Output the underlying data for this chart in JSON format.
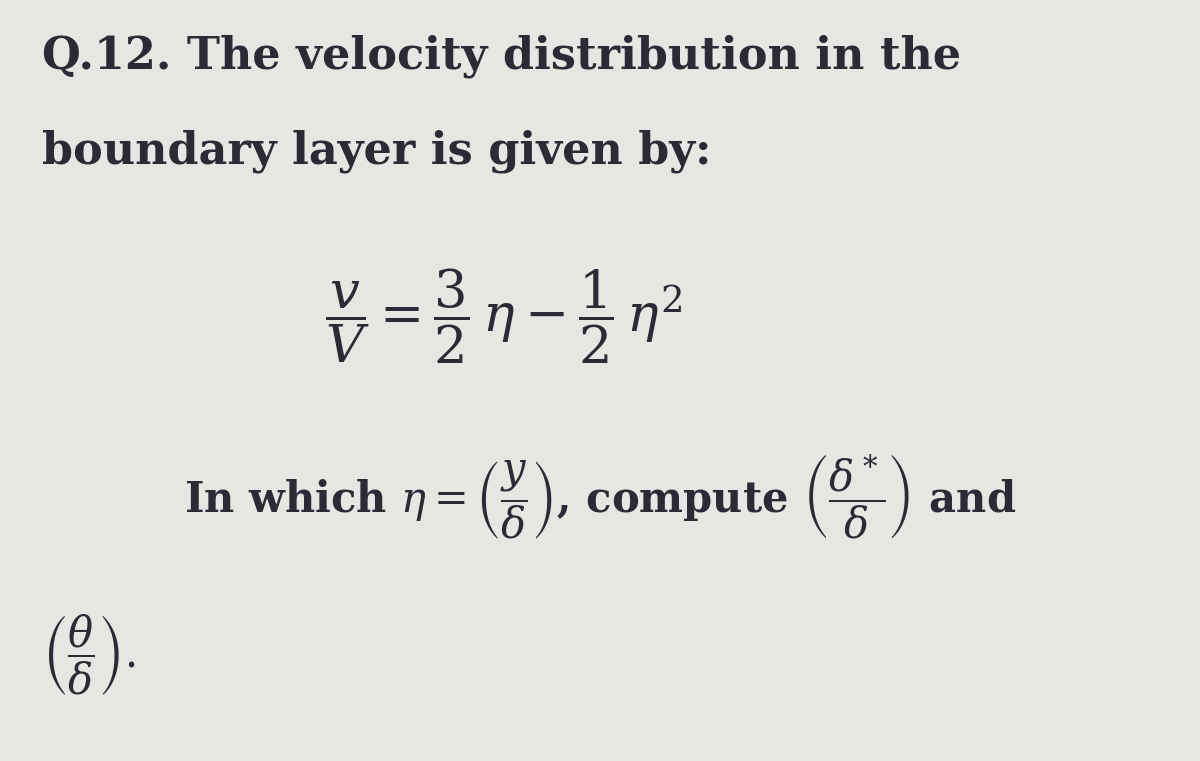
{
  "background_color": "#e8e6e2",
  "text_color": "#2d2a35",
  "fig_width": 12.0,
  "fig_height": 7.61,
  "dpi": 100,
  "title_line1": "Q.12. The velocity distribution in the",
  "title_line2": "boundary layer is given by:",
  "equation": "$\\dfrac{v}{V} = \\dfrac{3}{2}\\,\\eta - \\dfrac{1}{2}\\,\\eta^2$",
  "line3_pre": "In which $\\eta = \\left(\\dfrac{y}{\\delta}\\right)$, compute $\\left(\\dfrac{\\delta^*}{\\delta}\\right)$ and",
  "line4": "$\\left(\\dfrac{\\theta}{\\delta}\\right).$",
  "title_fontsize": 32,
  "eq_fontsize": 38,
  "body_fontsize": 30
}
